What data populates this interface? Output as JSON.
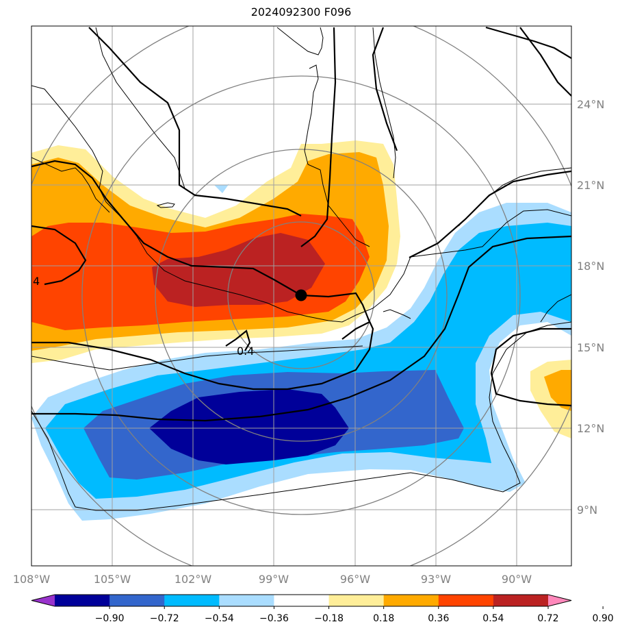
{
  "title": "2024092300 F096",
  "map": {
    "projection_region": {
      "lon_range": [
        -108,
        -88
      ],
      "lat_range": [
        7,
        27
      ]
    },
    "lon_ticks": [
      {
        "value": -108,
        "label": "108°W"
      },
      {
        "value": -105,
        "label": "105°W"
      },
      {
        "value": -102,
        "label": "102°W"
      },
      {
        "value": -99,
        "label": "99°W"
      },
      {
        "value": -96,
        "label": "96°W"
      },
      {
        "value": -93,
        "label": "93°W"
      },
      {
        "value": -90,
        "label": "90°W"
      }
    ],
    "lat_ticks": [
      {
        "value": 24,
        "label": "24°N"
      },
      {
        "value": 21,
        "label": "21°N"
      },
      {
        "value": 18,
        "label": "18°N"
      },
      {
        "value": 15,
        "label": "15°N"
      },
      {
        "value": 12,
        "label": "12°N"
      },
      {
        "value": 9,
        "label": "9°N"
      }
    ],
    "center_marker": {
      "lon": -97.95,
      "lat": 16.85
    },
    "contour_labels": [
      "4",
      "0.4"
    ]
  },
  "colorbar": {
    "colors": [
      "#9933cc",
      "#000099",
      "#3366cc",
      "#00bbff",
      "#aaddff",
      "#ffffff",
      "#ffee99",
      "#ffaa00",
      "#ff4400",
      "#bb2222",
      "#ff88bb"
    ],
    "tick_labels": [
      "−0.90",
      "−0.72",
      "−0.54",
      "−0.36",
      "−0.18",
      "0.18",
      "0.36",
      "0.54",
      "0.72",
      "0.90"
    ]
  }
}
